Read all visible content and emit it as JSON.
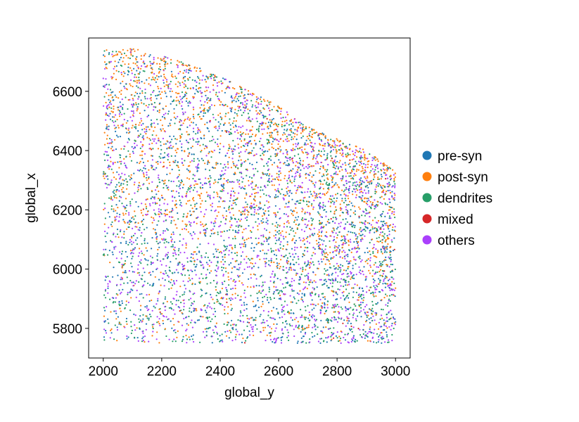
{
  "chart_data": {
    "type": "scatter",
    "title": "",
    "xlabel": "global_y",
    "ylabel": "global_x",
    "xlim": [
      1950,
      3050
    ],
    "ylim": [
      5700,
      6780
    ],
    "xticks": [
      2000,
      2200,
      2400,
      2600,
      2800,
      3000
    ],
    "yticks": [
      5800,
      6000,
      6200,
      6400,
      6600
    ],
    "xtick_labels": [
      "2000",
      "2200",
      "2400",
      "2600",
      "2800",
      "3000"
    ],
    "ytick_labels": [
      "5800",
      "6000",
      "6200",
      "6400",
      "6600"
    ],
    "grid": false,
    "legend_position": "right",
    "point_extent": {
      "x_range": [
        2000,
        3000
      ],
      "y_min": 5750,
      "upper_boundary": [
        [
          2000,
          6740
        ],
        [
          2100,
          6745
        ],
        [
          2200,
          6720
        ],
        [
          2300,
          6690
        ],
        [
          2400,
          6650
        ],
        [
          2500,
          6600
        ],
        [
          2600,
          6550
        ],
        [
          2700,
          6480
        ],
        [
          2800,
          6440
        ],
        [
          2900,
          6400
        ],
        [
          3000,
          6330
        ]
      ]
    },
    "series": [
      {
        "name": "pre-syn",
        "color": "#1f77b4",
        "approx_points": 1400
      },
      {
        "name": "post-syn",
        "color": "#ff7f0e",
        "approx_points": 1600
      },
      {
        "name": "dendrites",
        "color": "#279e68",
        "approx_points": 1300
      },
      {
        "name": "mixed",
        "color": "#d62728",
        "approx_points": 40
      },
      {
        "name": "others",
        "color": "#aa40fc",
        "approx_points": 1500
      }
    ]
  }
}
